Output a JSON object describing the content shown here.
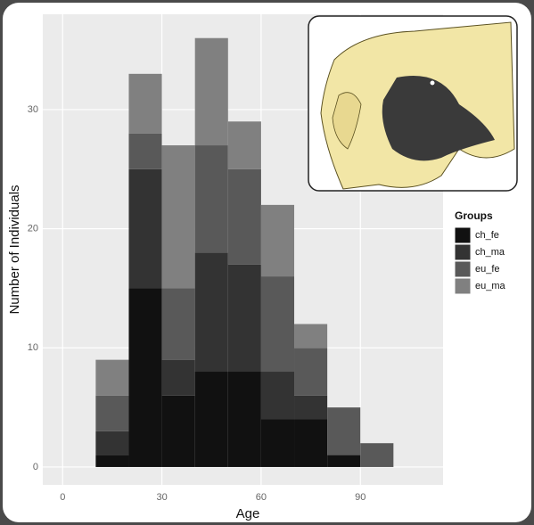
{
  "chart_data": {
    "type": "histogram",
    "x_label": "Age",
    "y_label": "Number of Individuals",
    "bins": [
      10,
      20,
      30,
      40,
      50,
      60,
      70,
      80,
      90,
      100
    ],
    "series": [
      {
        "name": "ch_fe",
        "color": "#111111",
        "values": [
          1,
          15,
          6,
          8,
          8,
          4,
          4,
          1,
          0
        ]
      },
      {
        "name": "ch_ma",
        "color": "#333333",
        "values": [
          2,
          10,
          3,
          10,
          9,
          4,
          2,
          0,
          0
        ]
      },
      {
        "name": "eu_fe",
        "color": "#595959",
        "values": [
          3,
          3,
          6,
          9,
          8,
          8,
          4,
          4,
          2
        ]
      },
      {
        "name": "eu_ma",
        "color": "#808080",
        "values": [
          3,
          5,
          12,
          9,
          4,
          6,
          2,
          0,
          0
        ]
      }
    ],
    "legend_title": "Groups",
    "legend": "right",
    "xlim": [
      -6,
      115
    ],
    "ylim": [
      -1.5,
      38
    ],
    "xticks": [
      0,
      30,
      60,
      90
    ],
    "yticks": [
      0,
      10,
      20,
      30
    ],
    "grid": true
  }
}
